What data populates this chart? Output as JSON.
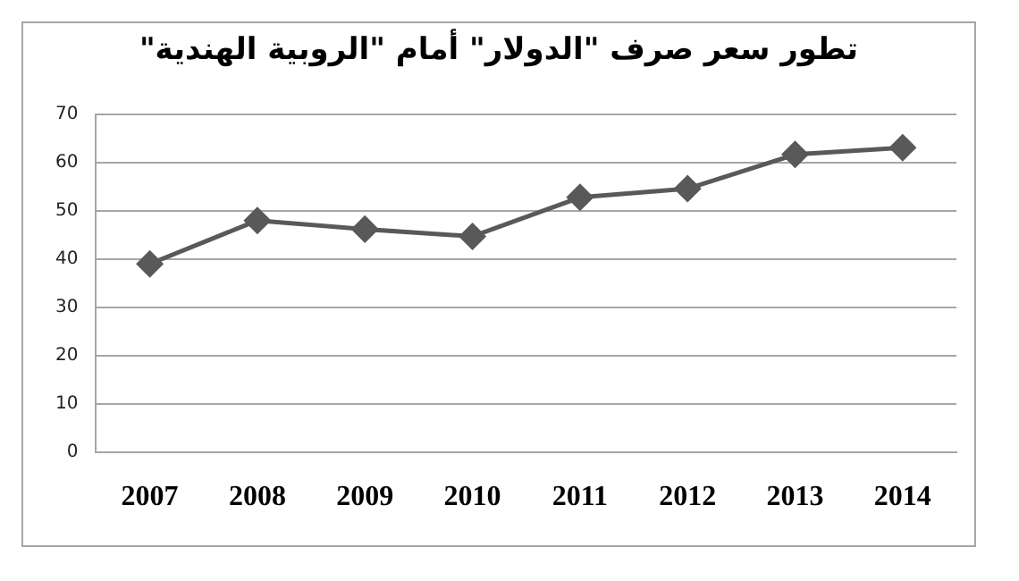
{
  "chart_data": {
    "type": "line",
    "title": "تطور سعر صرف \"الدولار\" أمام \"الروبية الهندية\"",
    "categories": [
      "2007",
      "2008",
      "2009",
      "2010",
      "2011",
      "2012",
      "2013",
      "2014"
    ],
    "series": [
      {
        "color": "#595959",
        "values": [
          39,
          48,
          46.2,
          44.7,
          52.8,
          54.6,
          61.7,
          63.1
        ]
      }
    ],
    "ylim": [
      0,
      70
    ],
    "yticks": [
      0,
      10,
      20,
      30,
      40,
      50,
      60,
      70
    ],
    "grid": "y",
    "legend": false,
    "marker": "diamond",
    "line_style": "solid"
  }
}
